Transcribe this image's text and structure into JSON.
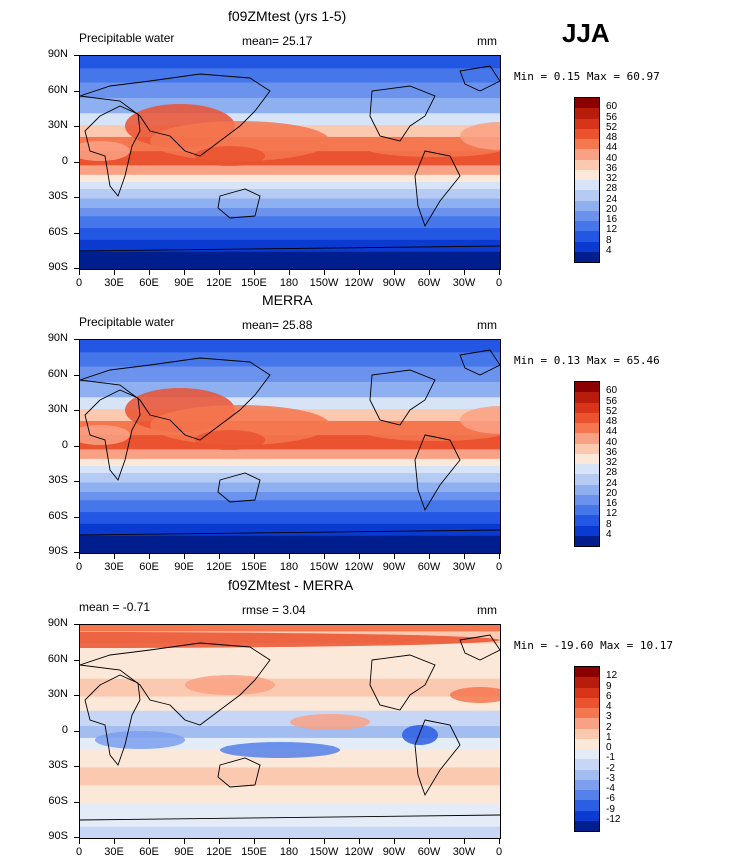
{
  "season": "JJA",
  "x_ticks": [
    "0",
    "30E",
    "60E",
    "90E",
    "120E",
    "150E",
    "180",
    "150W",
    "120W",
    "90W",
    "60W",
    "30W",
    "0"
  ],
  "y_ticks": [
    "90N",
    "60N",
    "30N",
    "0",
    "30S",
    "60S",
    "90S"
  ],
  "panels": [
    {
      "title": "f09ZMtest (yrs 1-5)",
      "left_label": "Precipitable water",
      "center_label": "mean=  25.17",
      "units": "mm",
      "minmax": "Min =   0.15 Max =  60.97",
      "colorbar_labels": [
        "60",
        "56",
        "52",
        "48",
        "44",
        "40",
        "36",
        "32",
        "28",
        "24",
        "20",
        "16",
        "12",
        "8",
        "4"
      ],
      "colorbar_colors": [
        "#8b0000",
        "#b81d0c",
        "#d8341a",
        "#ea5230",
        "#f5774f",
        "#f9a184",
        "#fbc8b0",
        "#fce8d8",
        "#d7e3f6",
        "#b6cbf3",
        "#8fb0f0",
        "#6b93ee",
        "#4677ea",
        "#2356e2",
        "#0a3ad0",
        "#001e8e"
      ]
    },
    {
      "title": "MERRA",
      "left_label": "Precipitable water",
      "center_label": "mean=  25.88",
      "units": "mm",
      "minmax": "Min =   0.13 Max =  65.46",
      "colorbar_labels": [
        "60",
        "56",
        "52",
        "48",
        "44",
        "40",
        "36",
        "32",
        "28",
        "24",
        "20",
        "16",
        "12",
        "8",
        "4"
      ],
      "colorbar_colors": [
        "#8b0000",
        "#b81d0c",
        "#d8341a",
        "#ea5230",
        "#f5774f",
        "#f9a184",
        "#fbc8b0",
        "#fce8d8",
        "#d7e3f6",
        "#b6cbf3",
        "#8fb0f0",
        "#6b93ee",
        "#4677ea",
        "#2356e2",
        "#0a3ad0",
        "#001e8e"
      ]
    },
    {
      "title": "f09ZMtest - MERRA",
      "left_label": "mean =  -0.71",
      "center_label": "rmse =   3.04",
      "units": "mm",
      "minmax": "Min = -19.60 Max =  10.17",
      "colorbar_labels": [
        "12",
        "9",
        "6",
        "4",
        "3",
        "2",
        "1",
        "0",
        "-1",
        "-2",
        "-3",
        "-4",
        "-6",
        "-9",
        "-12"
      ],
      "colorbar_colors": [
        "#8b0000",
        "#b81d0c",
        "#d8341a",
        "#ea5230",
        "#f5774f",
        "#f9a184",
        "#fbc8b0",
        "#fce8d8",
        "#e4ecf8",
        "#c6d6f4",
        "#a3bdf1",
        "#7d9fee",
        "#5680ea",
        "#2c5ee4",
        "#0b3bd2",
        "#001e8e"
      ]
    }
  ],
  "chart_data": [
    {
      "type": "heatmap",
      "title": "f09ZMtest (yrs 1-5)",
      "variable": "Precipitable water",
      "units": "mm",
      "mean": 25.17,
      "min": 0.15,
      "max": 60.97,
      "xlim": [
        0,
        360
      ],
      "ylim": [
        -90,
        90
      ],
      "contour_levels": [
        4,
        8,
        12,
        16,
        20,
        24,
        28,
        32,
        36,
        40,
        44,
        48,
        52,
        56,
        60
      ]
    },
    {
      "type": "heatmap",
      "title": "MERRA",
      "variable": "Precipitable water",
      "units": "mm",
      "mean": 25.88,
      "min": 0.13,
      "max": 65.46,
      "xlim": [
        0,
        360
      ],
      "ylim": [
        -90,
        90
      ],
      "contour_levels": [
        4,
        8,
        12,
        16,
        20,
        24,
        28,
        32,
        36,
        40,
        44,
        48,
        52,
        56,
        60
      ]
    },
    {
      "type": "heatmap",
      "title": "f09ZMtest - MERRA",
      "units": "mm",
      "mean": -0.71,
      "rmse": 3.04,
      "min": -19.6,
      "max": 10.17,
      "xlim": [
        0,
        360
      ],
      "ylim": [
        -90,
        90
      ],
      "contour_levels": [
        -12,
        -9,
        -6,
        -4,
        -3,
        -2,
        -1,
        0,
        1,
        2,
        3,
        4,
        6,
        9,
        12
      ]
    }
  ]
}
